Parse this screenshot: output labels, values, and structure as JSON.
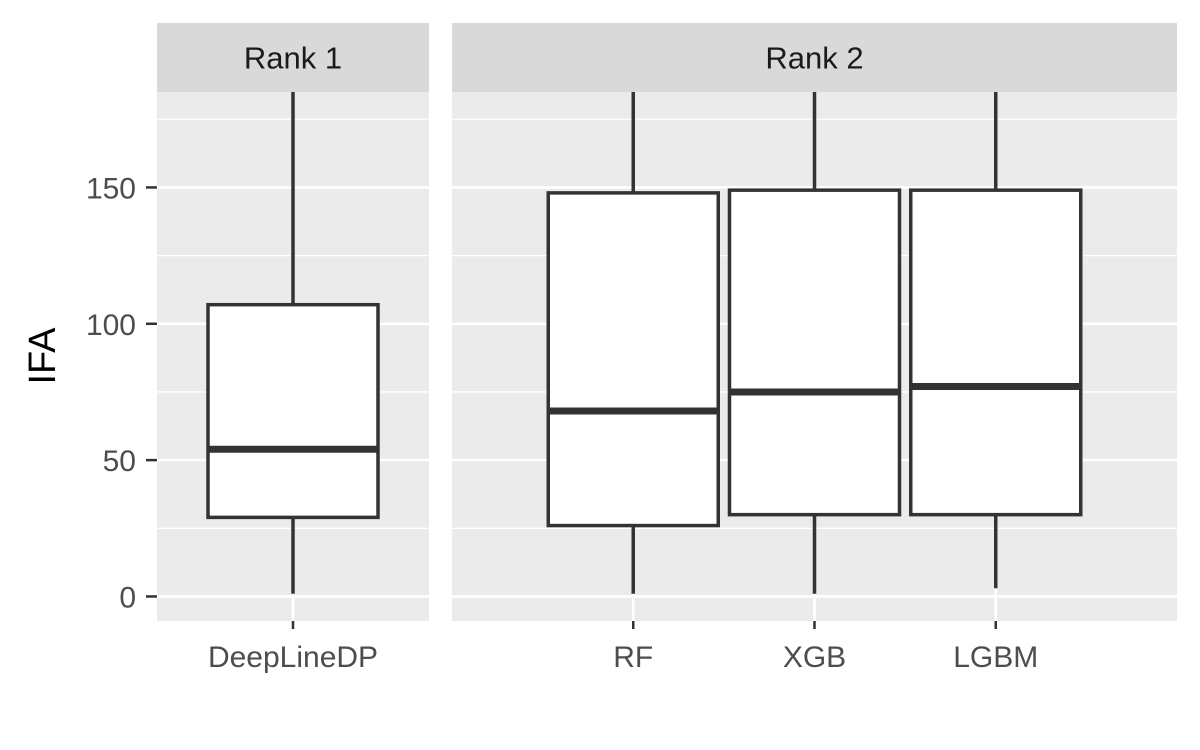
{
  "chart_data": {
    "type": "boxplot",
    "title": "",
    "xlabel": "",
    "ylabel": "IFA",
    "ylim": [
      -9,
      185
    ],
    "yticks": [
      0,
      50,
      100,
      150
    ],
    "grid": true,
    "legend": "none",
    "colors": {
      "panel_bg": "#ebebeb",
      "strip_bg": "#d9d9d9",
      "grid": "#ffffff",
      "box_fill": "#ffffff",
      "box_stroke": "#333333"
    },
    "panels": [
      {
        "label": "Rank 1",
        "categories": [
          "DeepLineDP"
        ],
        "boxes": [
          {
            "category": "DeepLineDP",
            "min": 1,
            "q1": 29,
            "median": 54,
            "q3": 107,
            "max": 185
          }
        ]
      },
      {
        "label": "Rank 2",
        "categories": [
          "RF",
          "XGB",
          "LGBM"
        ],
        "boxes": [
          {
            "category": "RF",
            "min": 1,
            "q1": 26,
            "median": 68,
            "q3": 148,
            "max": 185
          },
          {
            "category": "XGB",
            "min": 1,
            "q1": 30,
            "median": 75,
            "q3": 149,
            "max": 185
          },
          {
            "category": "LGBM",
            "min": 3,
            "q1": 30,
            "median": 77,
            "q3": 149,
            "max": 185
          }
        ]
      }
    ]
  }
}
